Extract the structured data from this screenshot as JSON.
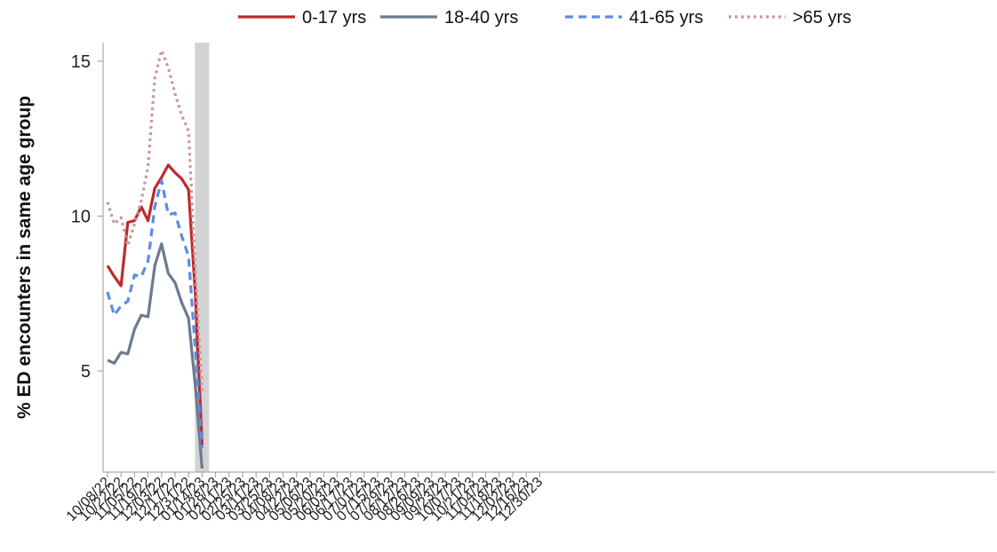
{
  "chart_data": {
    "type": "line",
    "ylabel": "% ED encounters in same age group",
    "xlabel": "",
    "ylim": [
      1.8,
      15.6
    ],
    "yticks": [
      5,
      10,
      15
    ],
    "grid": false,
    "legend_position": "top",
    "shaded_week": "01/14/23",
    "x_ticks": [
      "10/08/22",
      "10/22/22",
      "11/05/22",
      "11/19/22",
      "12/03/22",
      "12/17/22",
      "12/31/22",
      "01/14/23",
      "01/28/23",
      "02/11/23",
      "02/25/23",
      "03/11/23",
      "03/25/23",
      "04/08/23",
      "04/22/23",
      "05/06/23",
      "05/20/23",
      "06/03/23",
      "06/17/23",
      "07/01/23",
      "07/15/23",
      "07/29/23",
      "08/12/23",
      "08/26/23",
      "09/09/23",
      "09/23/23",
      "10/07/23",
      "10/21/23",
      "11/04/23",
      "11/18/23",
      "12/02/23",
      "12/16/23",
      "12/30/23"
    ],
    "x": [
      "10/08/22",
      "10/15/22",
      "10/22/22",
      "10/29/22",
      "11/05/22",
      "11/12/22",
      "11/19/22",
      "11/26/22",
      "12/03/22",
      "12/10/22",
      "12/17/22",
      "12/24/22",
      "12/31/22",
      "01/07/23",
      "01/14/23"
    ],
    "series": [
      {
        "name": "0-17 yrs",
        "color": "#c0282d",
        "dash": "solid",
        "values": [
          8.4,
          8.05,
          7.75,
          9.8,
          9.85,
          10.3,
          9.85,
          10.9,
          11.25,
          11.65,
          11.4,
          11.2,
          10.85,
          7.5,
          2.6
        ]
      },
      {
        "name": "18-40 yrs",
        "color": "#6c7a8c",
        "dash": "solid",
        "values": [
          5.35,
          5.25,
          5.6,
          5.55,
          6.35,
          6.8,
          6.75,
          8.4,
          9.1,
          8.15,
          7.85,
          7.2,
          6.7,
          4.5,
          1.85
        ]
      },
      {
        "name": "41-65 yrs",
        "color": "#5b8de2",
        "dash": "dashed",
        "values": [
          7.55,
          6.8,
          7.1,
          7.25,
          8.1,
          8.05,
          8.55,
          10.3,
          11.15,
          10.05,
          10.1,
          9.35,
          8.7,
          5.7,
          2.5
        ]
      },
      {
        "name": ">65 yrs",
        "color": "#c89898",
        "dash": "dotted",
        "values": [
          10.45,
          9.75,
          9.95,
          9.05,
          9.75,
          10.5,
          11.6,
          14.45,
          15.35,
          14.8,
          13.95,
          13.25,
          12.75,
          8.2,
          4.35
        ]
      }
    ]
  }
}
